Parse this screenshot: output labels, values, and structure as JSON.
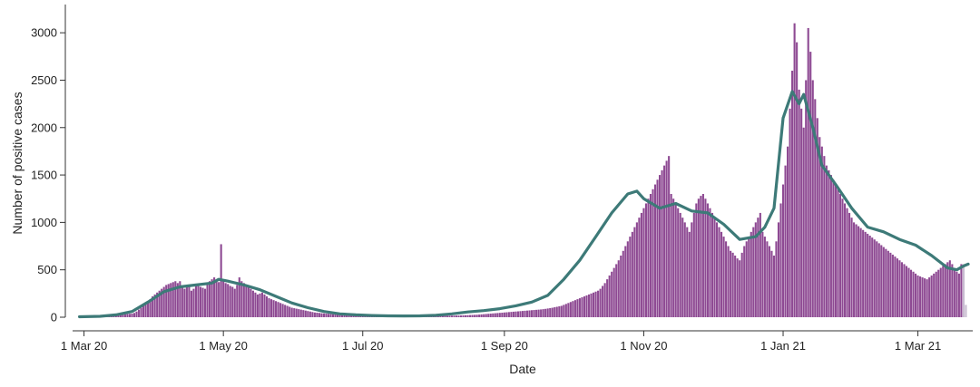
{
  "chart_data": {
    "type": "bar",
    "title": "",
    "xlabel": "Date",
    "ylabel": "Number of positive cases",
    "ylim": [
      0,
      3250
    ],
    "xlim": [
      "2020-02-25",
      "2021-03-25"
    ],
    "grid": false,
    "legend": "none",
    "x_ticks": [
      {
        "date": "2020-03-01",
        "label": "1 Mar 20"
      },
      {
        "date": "2020-05-01",
        "label": "1 May 20"
      },
      {
        "date": "2020-07-01",
        "label": "1 Jul 20"
      },
      {
        "date": "2020-09-01",
        "label": "1 Sep 20"
      },
      {
        "date": "2020-11-01",
        "label": "1 Nov 20"
      },
      {
        "date": "2021-01-01",
        "label": "1 Jan 21"
      },
      {
        "date": "2021-03-01",
        "label": "1 Mar 21"
      }
    ],
    "y_ticks": [
      0,
      500,
      1000,
      1500,
      2000,
      2500,
      3000
    ],
    "colors": {
      "bars": "#8e4a93",
      "incomplete_bars": "#c8bcd0",
      "line": "#3d7a78"
    },
    "series": [
      {
        "type": "bar",
        "start_date": "2020-02-28",
        "values": [
          0,
          0,
          0,
          1,
          1,
          2,
          2,
          3,
          3,
          4,
          5,
          6,
          8,
          10,
          12,
          15,
          20,
          24,
          28,
          30,
          32,
          34,
          36,
          38,
          45,
          60,
          80,
          100,
          120,
          140,
          170,
          190,
          220,
          240,
          260,
          280,
          300,
          320,
          340,
          350,
          360,
          370,
          380,
          360,
          380,
          330,
          300,
          340,
          320,
          280,
          300,
          330,
          340,
          320,
          310,
          300,
          350,
          380,
          400,
          420,
          380,
          370,
          770,
          380,
          360,
          350,
          330,
          320,
          300,
          340,
          420,
          380,
          360,
          340,
          320,
          300,
          280,
          260,
          240,
          250,
          260,
          240,
          220,
          200,
          190,
          180,
          170,
          160,
          150,
          140,
          130,
          120,
          110,
          100,
          95,
          90,
          85,
          80,
          75,
          70,
          65,
          60,
          55,
          50,
          48,
          45,
          42,
          40,
          38,
          36,
          34,
          32,
          30,
          28,
          27,
          26,
          25,
          24,
          23,
          22,
          21,
          20,
          20,
          19,
          19,
          18,
          18,
          17,
          17,
          16,
          16,
          15,
          15,
          15,
          15,
          14,
          14,
          14,
          14,
          14,
          13,
          13,
          13,
          13,
          13,
          13,
          13,
          13,
          13,
          13,
          13,
          13,
          13,
          13,
          14,
          14,
          14,
          14,
          15,
          15,
          15,
          16,
          16,
          17,
          17,
          18,
          18,
          19,
          20,
          21,
          22,
          23,
          24,
          25,
          26,
          28,
          30,
          32,
          34,
          36,
          38,
          40,
          42,
          44,
          46,
          48,
          50,
          52,
          54,
          56,
          58,
          60,
          62,
          64,
          66,
          68,
          70,
          72,
          74,
          76,
          78,
          80,
          82,
          85,
          88,
          92,
          96,
          100,
          105,
          110,
          115,
          120,
          130,
          140,
          150,
          160,
          170,
          180,
          190,
          200,
          210,
          220,
          230,
          240,
          250,
          260,
          270,
          280,
          300,
          330,
          360,
          400,
          440,
          480,
          520,
          560,
          600,
          650,
          700,
          750,
          800,
          850,
          900,
          950,
          1000,
          1050,
          1100,
          1150,
          1200,
          1250,
          1300,
          1350,
          1400,
          1450,
          1500,
          1550,
          1600,
          1650,
          1700,
          1300,
          1250,
          1200,
          1150,
          1100,
          1050,
          1000,
          950,
          900,
          1000,
          1100,
          1200,
          1250,
          1280,
          1300,
          1250,
          1200,
          1150,
          1100,
          1050,
          1000,
          950,
          900,
          850,
          800,
          750,
          700,
          680,
          650,
          620,
          600,
          680,
          750,
          800,
          850,
          900,
          950,
          1000,
          1050,
          1100,
          900,
          850,
          800,
          750,
          700,
          650,
          800,
          1000,
          1200,
          1400,
          1600,
          1800,
          2200,
          2600,
          3100,
          2900,
          2400,
          2200,
          2000,
          2500,
          3050,
          2800,
          2500,
          2300,
          2100,
          1900,
          1800,
          1700,
          1600,
          1550,
          1500,
          1450,
          1400,
          1350,
          1300,
          1250,
          1200,
          1150,
          1100,
          1050,
          1000,
          980,
          960,
          940,
          920,
          900,
          880,
          860,
          840,
          820,
          800,
          780,
          760,
          740,
          720,
          700,
          680,
          660,
          640,
          620,
          600,
          580,
          560,
          540,
          520,
          500,
          480,
          460,
          440,
          430,
          420,
          410,
          400,
          420,
          440,
          460,
          480,
          500,
          520,
          540,
          560,
          580,
          600,
          560,
          520,
          480,
          460,
          560,
          560,
          130
        ]
      },
      {
        "type": "line",
        "name": "",
        "points": [
          [
            "2020-02-28",
            5
          ],
          [
            "2020-03-08",
            10
          ],
          [
            "2020-03-15",
            25
          ],
          [
            "2020-03-22",
            60
          ],
          [
            "2020-03-29",
            160
          ],
          [
            "2020-04-05",
            270
          ],
          [
            "2020-04-12",
            320
          ],
          [
            "2020-04-19",
            340
          ],
          [
            "2020-04-26",
            360
          ],
          [
            "2020-04-29",
            400
          ],
          [
            "2020-05-03",
            380
          ],
          [
            "2020-05-10",
            340
          ],
          [
            "2020-05-17",
            290
          ],
          [
            "2020-05-24",
            220
          ],
          [
            "2020-05-31",
            150
          ],
          [
            "2020-06-07",
            100
          ],
          [
            "2020-06-14",
            60
          ],
          [
            "2020-06-21",
            35
          ],
          [
            "2020-06-28",
            25
          ],
          [
            "2020-07-05",
            18
          ],
          [
            "2020-07-12",
            14
          ],
          [
            "2020-07-19",
            13
          ],
          [
            "2020-07-26",
            14
          ],
          [
            "2020-08-02",
            20
          ],
          [
            "2020-08-09",
            35
          ],
          [
            "2020-08-16",
            55
          ],
          [
            "2020-08-23",
            70
          ],
          [
            "2020-08-30",
            90
          ],
          [
            "2020-09-06",
            120
          ],
          [
            "2020-09-13",
            160
          ],
          [
            "2020-09-20",
            230
          ],
          [
            "2020-09-27",
            400
          ],
          [
            "2020-10-04",
            600
          ],
          [
            "2020-10-11",
            850
          ],
          [
            "2020-10-18",
            1100
          ],
          [
            "2020-10-25",
            1300
          ],
          [
            "2020-10-29",
            1330
          ],
          [
            "2020-11-01",
            1250
          ],
          [
            "2020-11-08",
            1150
          ],
          [
            "2020-11-15",
            1200
          ],
          [
            "2020-11-22",
            1120
          ],
          [
            "2020-11-29",
            1100
          ],
          [
            "2020-12-06",
            980
          ],
          [
            "2020-12-13",
            820
          ],
          [
            "2020-12-20",
            850
          ],
          [
            "2020-12-24",
            950
          ],
          [
            "2020-12-28",
            1150
          ],
          [
            "2021-01-01",
            2100
          ],
          [
            "2021-01-05",
            2380
          ],
          [
            "2021-01-08",
            2250
          ],
          [
            "2021-01-10",
            2350
          ],
          [
            "2021-01-14",
            2000
          ],
          [
            "2021-01-18",
            1600
          ],
          [
            "2021-01-24",
            1400
          ],
          [
            "2021-01-31",
            1150
          ],
          [
            "2021-02-07",
            950
          ],
          [
            "2021-02-14",
            900
          ],
          [
            "2021-02-21",
            820
          ],
          [
            "2021-02-28",
            760
          ],
          [
            "2021-03-07",
            650
          ],
          [
            "2021-03-14",
            520
          ],
          [
            "2021-03-18",
            500
          ],
          [
            "2021-03-21",
            540
          ],
          [
            "2021-03-23",
            560
          ]
        ]
      }
    ]
  }
}
